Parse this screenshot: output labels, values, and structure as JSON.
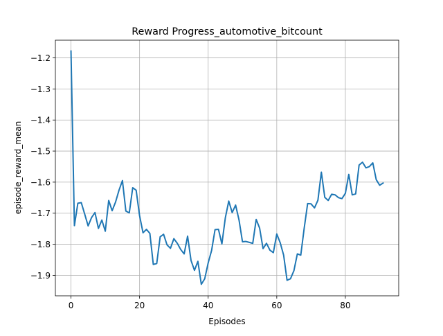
{
  "chart_data": {
    "type": "line",
    "title": "Reward Progress_automotive_bitcount",
    "xlabel": "Episodes",
    "ylabel": "episode_reward_mean",
    "xlim": [
      -4.55,
      95.55
    ],
    "ylim": [
      -1.966,
      -1.143
    ],
    "xticks": [
      0,
      20,
      40,
      60,
      80
    ],
    "xtick_labels": [
      "0",
      "20",
      "40",
      "60",
      "80"
    ],
    "yticks": [
      -1.9,
      -1.8,
      -1.7,
      -1.6,
      -1.5,
      -1.4,
      -1.3,
      -1.2
    ],
    "ytick_labels": [
      "−1.9",
      "−1.8",
      "−1.7",
      "−1.6",
      "−1.5",
      "−1.4",
      "−1.3",
      "−1.2"
    ],
    "grid": true,
    "line_color": "#1f77b4",
    "series": [
      {
        "values": [
          -1.178,
          -1.74,
          -1.668,
          -1.666,
          -1.703,
          -1.741,
          -1.714,
          -1.698,
          -1.749,
          -1.722,
          -1.758,
          -1.659,
          -1.692,
          -1.664,
          -1.626,
          -1.595,
          -1.693,
          -1.699,
          -1.618,
          -1.626,
          -1.708,
          -1.763,
          -1.752,
          -1.765,
          -1.865,
          -1.862,
          -1.776,
          -1.768,
          -1.802,
          -1.813,
          -1.782,
          -1.797,
          -1.817,
          -1.831,
          -1.774,
          -1.852,
          -1.884,
          -1.855,
          -1.929,
          -1.911,
          -1.86,
          -1.82,
          -1.753,
          -1.752,
          -1.799,
          -1.715,
          -1.661,
          -1.698,
          -1.674,
          -1.722,
          -1.792,
          -1.791,
          -1.794,
          -1.797,
          -1.72,
          -1.748,
          -1.814,
          -1.797,
          -1.819,
          -1.827,
          -1.767,
          -1.795,
          -1.835,
          -1.916,
          -1.911,
          -1.885,
          -1.831,
          -1.835,
          -1.748,
          -1.669,
          -1.67,
          -1.683,
          -1.658,
          -1.568,
          -1.649,
          -1.659,
          -1.639,
          -1.641,
          -1.65,
          -1.653,
          -1.636,
          -1.575,
          -1.641,
          -1.638,
          -1.545,
          -1.536,
          -1.554,
          -1.55,
          -1.538,
          -1.592,
          -1.61,
          -1.603
        ]
      }
    ]
  }
}
